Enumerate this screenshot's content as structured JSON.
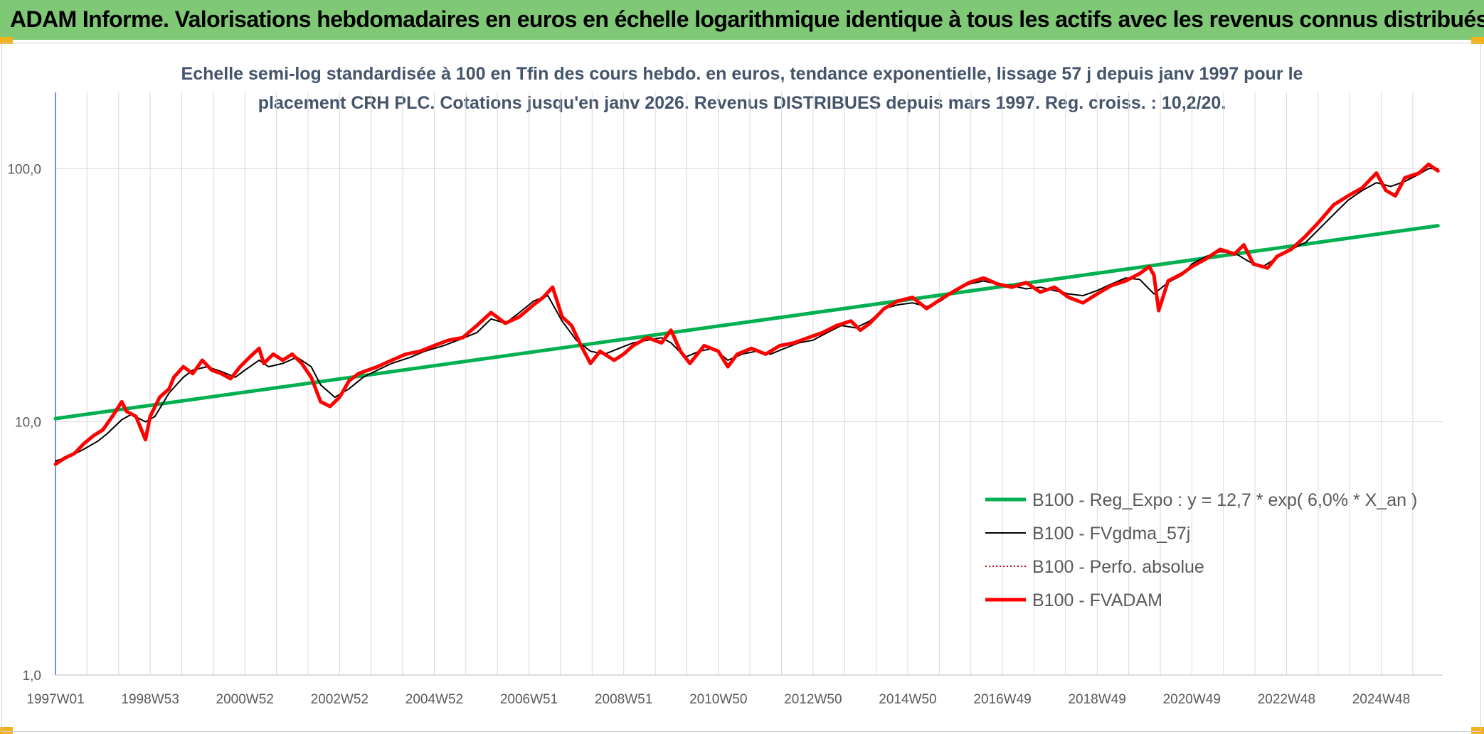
{
  "header": {
    "title": "ADAM Informe. Valorisations hebdomadaires en euros en échelle logarithmique identique à tous les actifs avec les revenus connus distribués"
  },
  "chart_data": {
    "type": "line",
    "title": "Echelle semi-log standardisée à 100 en Tfin des cours hebdo. en euros, tendance exponentielle, lissage 57 j depuis janv 1997 pour le placement CRH PLC. Cotations jusqu'en janv 2026. Revenus DISTRIBUES depuis mars 1997. Reg. croiss. : 10,2/20.",
    "title_lines": [
      "Echelle semi-log standardisée à 100 en Tfin des cours hebdo. en euros, tendance exponentielle, lissage 57 j depuis janv 1997 pour le",
      "placement CRH PLC. Cotations jusqu'en janv 2026. Revenus DISTRIBUES depuis mars 1997. Reg. croiss. : 10,2/20."
    ],
    "y_scale": "log",
    "ylim": [
      1,
      200
    ],
    "y_ticks": [
      1,
      10,
      100
    ],
    "y_tick_labels": [
      "1,0",
      "10,0",
      "100,0"
    ],
    "xlim": [
      1997.0,
      2026.3
    ],
    "x_ticks": [
      1997.0,
      1999.0,
      2001.0,
      2003.0,
      2005.0,
      2007.0,
      2009.0,
      2011.0,
      2013.0,
      2015.0,
      2017.0,
      2019.0,
      2021.0,
      2023.0,
      2025.0
    ],
    "x_tick_labels": [
      "1997W01",
      "1998W53",
      "2000W52",
      "2002W52",
      "2004W52",
      "2006W51",
      "2008W51",
      "2010W50",
      "2012W50",
      "2014W50",
      "2016W49",
      "2018W49",
      "2020W49",
      "2022W48",
      "2024W48"
    ],
    "grid": true,
    "legend_position": "bottom-right",
    "series": [
      {
        "name": "B100 - Reg_Expo : y = 12,7 * exp( 6,0% *  X_an )",
        "color": "#00b050",
        "style": "solid-thick",
        "x": [
          1997.0,
          2026.2
        ],
        "y": [
          10.3,
          59.5
        ]
      },
      {
        "name": "B100 - FVgdma_57j",
        "color": "#000000",
        "style": "solid-thin",
        "x": [
          1997.0,
          1997.3,
          1997.6,
          1997.9,
          1998.1,
          1998.4,
          1998.6,
          1998.9,
          1999.1,
          1999.4,
          1999.7,
          1999.9,
          2000.2,
          2000.5,
          2000.8,
          2001.0,
          2001.3,
          2001.5,
          2001.8,
          2002.1,
          2002.4,
          2002.6,
          2002.9,
          2003.2,
          2003.5,
          2003.8,
          2004.1,
          2004.5,
          2004.8,
          2005.2,
          2005.5,
          2005.9,
          2006.2,
          2006.5,
          2006.8,
          2007.1,
          2007.4,
          2007.7,
          2008.0,
          2008.3,
          2008.6,
          2008.9,
          2009.2,
          2009.5,
          2009.8,
          2010.0,
          2010.3,
          2010.6,
          2010.9,
          2011.2,
          2011.5,
          2011.8,
          2012.1,
          2012.4,
          2012.7,
          2013.0,
          2013.3,
          2013.6,
          2013.9,
          2014.2,
          2014.5,
          2014.8,
          2015.1,
          2015.4,
          2015.7,
          2016.0,
          2016.3,
          2016.6,
          2016.9,
          2017.2,
          2017.5,
          2017.8,
          2018.1,
          2018.4,
          2018.7,
          2019.0,
          2019.3,
          2019.6,
          2019.9,
          2020.2,
          2020.5,
          2020.8,
          2021.0,
          2021.3,
          2021.6,
          2021.9,
          2022.2,
          2022.5,
          2022.8,
          2023.1,
          2023.4,
          2023.7,
          2024.0,
          2024.3,
          2024.6,
          2024.9,
          2025.2,
          2025.5,
          2025.8,
          2026.0,
          2026.2
        ],
        "y": [
          7.0,
          7.3,
          7.8,
          8.4,
          9.0,
          10.2,
          10.7,
          10.0,
          10.5,
          13.0,
          15.0,
          16.0,
          16.5,
          15.8,
          15.0,
          16.0,
          17.5,
          16.5,
          17.0,
          18.0,
          16.5,
          14.0,
          12.5,
          13.5,
          15.0,
          16.0,
          17.0,
          18.0,
          19.0,
          20.0,
          21.0,
          22.5,
          25.5,
          24.5,
          27.0,
          30.0,
          31.5,
          25.0,
          21.0,
          19.0,
          18.5,
          19.5,
          20.5,
          21.0,
          21.5,
          20.5,
          18.0,
          19.0,
          19.5,
          17.5,
          18.5,
          19.0,
          18.5,
          19.5,
          20.5,
          21.0,
          22.5,
          24.0,
          23.5,
          25.0,
          28.0,
          29.0,
          29.5,
          28.5,
          30.0,
          33.0,
          35.0,
          36.0,
          35.0,
          34.5,
          33.5,
          34.0,
          33.0,
          32.0,
          31.5,
          33.0,
          35.0,
          37.0,
          36.5,
          32.0,
          35.5,
          38.0,
          42.0,
          45.0,
          47.0,
          46.5,
          43.0,
          41.0,
          44.5,
          48.0,
          51.0,
          58.0,
          66.0,
          75.0,
          82.0,
          88.0,
          85.0,
          89.0,
          95.0,
          100.0,
          100.0
        ]
      },
      {
        "name": "B100 - Perfo. absolue",
        "color": "#c00000",
        "style": "dotted",
        "x": [],
        "y": []
      },
      {
        "name": "B100 - FVADAM",
        "color": "#ff0000",
        "style": "solid-thick",
        "x": [
          1997.0,
          1997.2,
          1997.4,
          1997.6,
          1997.8,
          1998.0,
          1998.2,
          1998.4,
          1998.5,
          1998.7,
          1998.9,
          1999.0,
          1999.2,
          1999.4,
          1999.5,
          1999.7,
          1999.9,
          2000.1,
          2000.3,
          2000.5,
          2000.7,
          2000.9,
          2001.1,
          2001.3,
          2001.4,
          2001.6,
          2001.8,
          2002.0,
          2002.2,
          2002.4,
          2002.6,
          2002.8,
          2003.0,
          2003.2,
          2003.4,
          2003.6,
          2003.8,
          2004.1,
          2004.4,
          2004.7,
          2005.0,
          2005.3,
          2005.6,
          2005.9,
          2006.2,
          2006.5,
          2006.8,
          2007.1,
          2007.3,
          2007.5,
          2007.7,
          2007.9,
          2008.1,
          2008.3,
          2008.5,
          2008.8,
          2009.0,
          2009.2,
          2009.5,
          2009.8,
          2010.0,
          2010.2,
          2010.4,
          2010.7,
          2011.0,
          2011.2,
          2011.4,
          2011.7,
          2012.0,
          2012.3,
          2012.6,
          2012.9,
          2013.2,
          2013.5,
          2013.8,
          2014.0,
          2014.2,
          2014.5,
          2014.8,
          2015.1,
          2015.4,
          2015.7,
          2016.0,
          2016.3,
          2016.6,
          2016.9,
          2017.2,
          2017.5,
          2017.8,
          2018.1,
          2018.4,
          2018.7,
          2019.0,
          2019.3,
          2019.6,
          2019.9,
          2020.1,
          2020.2,
          2020.3,
          2020.5,
          2020.8,
          2021.0,
          2021.3,
          2021.6,
          2021.9,
          2022.1,
          2022.3,
          2022.6,
          2022.8,
          2023.1,
          2023.4,
          2023.7,
          2024.0,
          2024.3,
          2024.6,
          2024.9,
          2025.1,
          2025.3,
          2025.5,
          2025.8,
          2026.0,
          2026.2
        ],
        "y": [
          6.8,
          7.2,
          7.5,
          8.2,
          8.8,
          9.3,
          10.5,
          12.0,
          11.0,
          10.5,
          8.5,
          10.5,
          12.5,
          13.5,
          15.0,
          16.5,
          15.5,
          17.5,
          16.0,
          15.5,
          14.8,
          16.5,
          18.0,
          19.5,
          17.0,
          18.5,
          17.5,
          18.5,
          17.0,
          15.0,
          12.0,
          11.5,
          12.5,
          14.5,
          15.5,
          16.0,
          16.5,
          17.5,
          18.5,
          19.0,
          20.0,
          21.0,
          21.5,
          24.0,
          27.0,
          24.5,
          26.0,
          29.0,
          31.0,
          34.0,
          26.0,
          24.0,
          20.0,
          17.0,
          19.0,
          17.5,
          18.5,
          20.0,
          21.5,
          20.5,
          23.0,
          19.0,
          17.0,
          20.0,
          19.0,
          16.5,
          18.5,
          19.5,
          18.5,
          20.0,
          20.5,
          21.5,
          22.5,
          24.0,
          25.0,
          23.0,
          24.5,
          28.0,
          30.0,
          31.0,
          28.0,
          30.5,
          33.0,
          35.5,
          37.0,
          35.0,
          34.0,
          35.5,
          32.5,
          34.0,
          31.0,
          29.5,
          32.0,
          34.5,
          36.0,
          38.5,
          41.0,
          38.0,
          27.5,
          36.0,
          38.5,
          41.0,
          44.0,
          48.0,
          46.0,
          50.0,
          42.0,
          40.5,
          45.0,
          48.0,
          54.0,
          62.0,
          72.0,
          78.0,
          84.0,
          96.0,
          82.0,
          78.0,
          92.0,
          96.0,
          104.0,
          98.0
        ]
      }
    ]
  }
}
